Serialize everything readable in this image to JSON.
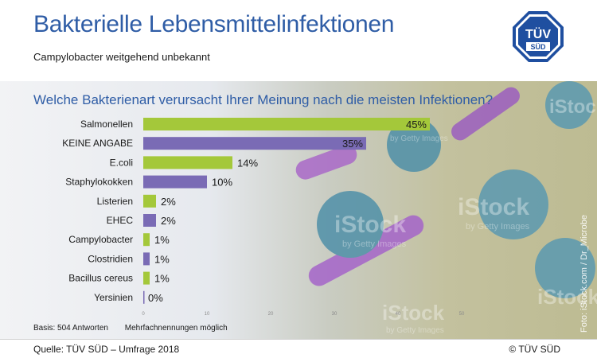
{
  "header": {
    "title": "Bakterielle Lebensmittelinfektionen",
    "subtitle": "Campylobacter weitgehend unbekannt",
    "logo_text_top": "TÜV",
    "logo_text_bottom": "SÜD"
  },
  "question": "Welche Bakterienart verursacht Ihrer Meinung nach die meisten Infektionen?",
  "chart_data": {
    "type": "bar",
    "orientation": "horizontal",
    "categories": [
      "Salmonellen",
      "KEINE ANGABE",
      "E.coli",
      "Staphylokokken",
      "Listerien",
      "EHEC",
      "Campylobacter",
      "Clostridien",
      "Bacillus cereus",
      "Yersinien"
    ],
    "values": [
      45,
      35,
      14,
      10,
      2,
      2,
      1,
      1,
      1,
      0
    ],
    "value_labels": [
      "45%",
      "35%",
      "14%",
      "10%",
      "2%",
      "2%",
      "1%",
      "1%",
      "1%",
      "0%"
    ],
    "xlim": [
      0,
      50
    ],
    "xticks": [
      "0",
      "10",
      "20",
      "30",
      "40",
      "50"
    ],
    "grid": false
  },
  "colors": {
    "title": "#2f5da6",
    "bar_green": "#a4c83a",
    "bar_purple": "#7a6bb5"
  },
  "footnote": {
    "basis": "Basis: 504 Antworten",
    "multi": "Mehrfachnennungen möglich"
  },
  "footer": {
    "source": "Quelle: TÜV SÜD – Umfrage 2018",
    "copyright": "© TÜV SÜD"
  },
  "photo_credit": "Foto: iStock.com / Dr_Microbe",
  "watermarks": [
    "iStock",
    "by Getty Images"
  ]
}
